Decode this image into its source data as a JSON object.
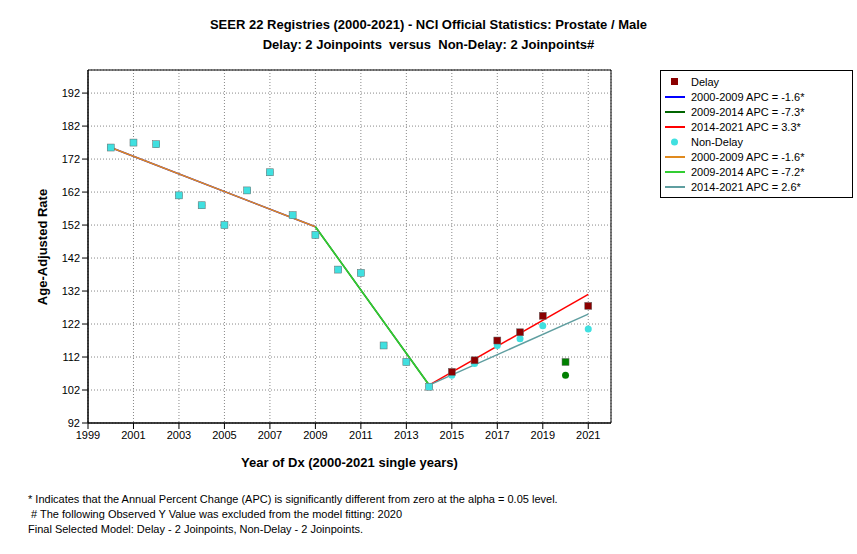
{
  "chart_data": {
    "type": "line",
    "title": [
      "SEER 22 Registries (2000-2021) - NCI Official Statistics: Prostate / Male",
      "Delay: 2 Joinpoints  versus  Non-Delay: 2 Joinpoints#"
    ],
    "x_label": "Year of Dx (2000-2021 single years)",
    "y_label": "Age-Adjusted Rate",
    "annotations": [
      "* Indicates that the Annual Percent Change (APC) is significantly different from zero at the alpha = 0.05 level.",
      " # The following Observed Y Value was excluded from the model fitting: 2020",
      "Final Selected Model: Delay - 2 Joinpoints, Non-Delay - 2 Joinpoints."
    ],
    "xlim": [
      1999,
      2022
    ],
    "xticks": [
      1999,
      2001,
      2003,
      2005,
      2007,
      2009,
      2011,
      2013,
      2015,
      2017,
      2019,
      2021
    ],
    "ylim": [
      92,
      199
    ],
    "yticks": [
      92,
      102,
      112,
      122,
      132,
      142,
      152,
      162,
      172,
      182,
      192
    ],
    "grid": true,
    "legend": "right",
    "series": [
      {
        "name": "Delay",
        "type": "scatter",
        "marker": "square",
        "color": "#8b0000",
        "x": [
          2000,
          2001,
          2002,
          2003,
          2004,
          2005,
          2006,
          2007,
          2008,
          2009,
          2010,
          2011,
          2012,
          2013,
          2014,
          2015,
          2016,
          2017,
          2018,
          2019,
          2020,
          2021
        ],
        "values": [
          175.5,
          177,
          176.5,
          161,
          158,
          152,
          162.5,
          168,
          155,
          149,
          138.5,
          137.5,
          115.5,
          110.5,
          103,
          107.5,
          111,
          117,
          119.5,
          124.5,
          110.5,
          127.5
        ],
        "colors": [
          "#40e0e0",
          "#40e0e0",
          "#40e0e0",
          "#40e0e0",
          "#40e0e0",
          "#40e0e0",
          "#40e0e0",
          "#40e0e0",
          "#40e0e0",
          "#40e0e0",
          "#40e0e0",
          "#40e0e0",
          "#40e0e0",
          "#40e0e0",
          "#40e0e0",
          "#8b0000",
          "#8b0000",
          "#8b0000",
          "#8b0000",
          "#8b0000",
          "#008000",
          "#8b0000"
        ]
      },
      {
        "name": "2000-2009 APC = -1.6*",
        "type": "line",
        "color": "#0000ff",
        "x": [
          2000,
          2009
        ],
        "values": [
          175.5,
          151.5
        ]
      },
      {
        "name": "2009-2014 APC = -7.3*",
        "type": "line",
        "color": "#006400",
        "x": [
          2009,
          2014
        ],
        "values": [
          151.5,
          103.5
        ]
      },
      {
        "name": "2014-2021 APC = 3.3*",
        "type": "line",
        "color": "#ff0000",
        "x": [
          2014,
          2021
        ],
        "values": [
          103.5,
          131
        ]
      },
      {
        "name": "Non-Delay",
        "type": "scatter",
        "marker": "circle",
        "color": "#40e0e0",
        "x": [
          2000,
          2001,
          2002,
          2003,
          2004,
          2005,
          2006,
          2007,
          2008,
          2009,
          2010,
          2011,
          2012,
          2013,
          2014,
          2015,
          2016,
          2017,
          2018,
          2019,
          2020,
          2021
        ],
        "values": [
          175.5,
          177,
          176.5,
          161,
          158,
          152,
          162.5,
          168,
          155,
          149,
          138.5,
          137.5,
          115.5,
          110.5,
          103,
          106.5,
          110,
          115.5,
          117.5,
          121.5,
          106.5,
          120.5
        ],
        "colors": [
          "#40e0e0",
          "#40e0e0",
          "#40e0e0",
          "#40e0e0",
          "#40e0e0",
          "#40e0e0",
          "#40e0e0",
          "#40e0e0",
          "#40e0e0",
          "#40e0e0",
          "#40e0e0",
          "#40e0e0",
          "#40e0e0",
          "#40e0e0",
          "#40e0e0",
          "#40e0e0",
          "#40e0e0",
          "#40e0e0",
          "#40e0e0",
          "#40e0e0",
          "#008000",
          "#40e0e0"
        ]
      },
      {
        "name": "2000-2009 APC = -1.6*",
        "type": "line",
        "color": "#e08a1e",
        "x": [
          2000,
          2009
        ],
        "values": [
          175.5,
          151.5
        ]
      },
      {
        "name": "2009-2014 APC = -7.2*",
        "type": "line",
        "color": "#32cd32",
        "x": [
          2009,
          2014
        ],
        "values": [
          151.5,
          103.5
        ]
      },
      {
        "name": "2014-2021 APC = 2.6*",
        "type": "line",
        "color": "#5f9ea0",
        "x": [
          2014,
          2021
        ],
        "values": [
          103.5,
          125
        ]
      }
    ]
  }
}
